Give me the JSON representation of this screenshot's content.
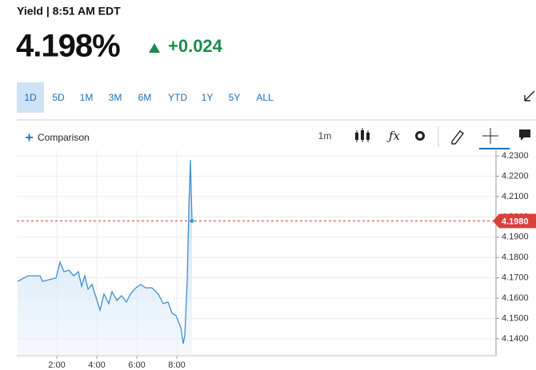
{
  "header": {
    "label": "Yield | 8:51 AM EDT",
    "price": "4.198%",
    "change": "+0.024"
  },
  "tabs": [
    "1D",
    "5D",
    "1M",
    "3M",
    "6M",
    "YTD",
    "1Y",
    "5Y",
    "ALL"
  ],
  "active_tab": 0,
  "toolbar": {
    "comparison": "Comparison",
    "interval": "1m"
  },
  "chart_data": {
    "type": "line",
    "x": [
      0.04,
      0.56,
      1.16,
      1.28,
      1.64,
      1.96,
      2.16,
      2.36,
      2.6,
      2.84,
      3.08,
      3.24,
      3.4,
      3.56,
      3.76,
      3.96,
      4.16,
      4.36,
      4.6,
      4.76,
      5.0,
      5.24,
      5.48,
      5.68,
      5.96,
      6.2,
      6.44,
      6.76,
      7.08,
      7.32,
      7.56,
      7.76,
      7.96,
      8.2,
      8.32,
      8.4,
      8.52,
      8.6,
      8.68,
      8.76
    ],
    "values": [
      4.1683,
      4.171,
      4.171,
      4.1683,
      4.1691,
      4.1699,
      4.1777,
      4.173,
      4.1738,
      4.171,
      4.173,
      4.1659,
      4.171,
      4.1644,
      4.1667,
      4.1604,
      4.1541,
      4.162,
      4.1573,
      4.1632,
      4.1589,
      4.1612,
      4.1581,
      4.162,
      4.1651,
      4.1667,
      4.1651,
      4.1651,
      4.162,
      4.1573,
      4.1581,
      4.1526,
      4.1514,
      4.1455,
      4.1376,
      4.1416,
      4.1683,
      4.2037,
      4.228,
      4.198
    ],
    "color": "#3f8fd2",
    "xlim": [
      0,
      24
    ],
    "xticks": [
      {
        "value": 2,
        "label": "2:00"
      },
      {
        "value": 4,
        "label": "4:00"
      },
      {
        "value": 6,
        "label": "6:00"
      },
      {
        "value": 8,
        "label": "8:00"
      }
    ],
    "ylim": [
      4.1317,
      4.2328
    ],
    "yticks": [
      {
        "value": 4.14,
        "label": "4.1400"
      },
      {
        "value": 4.15,
        "label": "4.1500"
      },
      {
        "value": 4.16,
        "label": "4.1600"
      },
      {
        "value": 4.17,
        "label": "4.1700"
      },
      {
        "value": 4.18,
        "label": "4.1800"
      },
      {
        "value": 4.19,
        "label": "4.1900"
      },
      {
        "value": 4.2,
        "label": "4.2000"
      },
      {
        "value": 4.21,
        "label": "4.2100"
      },
      {
        "value": 4.22,
        "label": "4.2200"
      },
      {
        "value": 4.23,
        "label": "4.2300"
      }
    ],
    "grid": true,
    "last_value": {
      "value": 4.198,
      "label": "4.1980"
    },
    "last_value_color": "#d9413b"
  }
}
